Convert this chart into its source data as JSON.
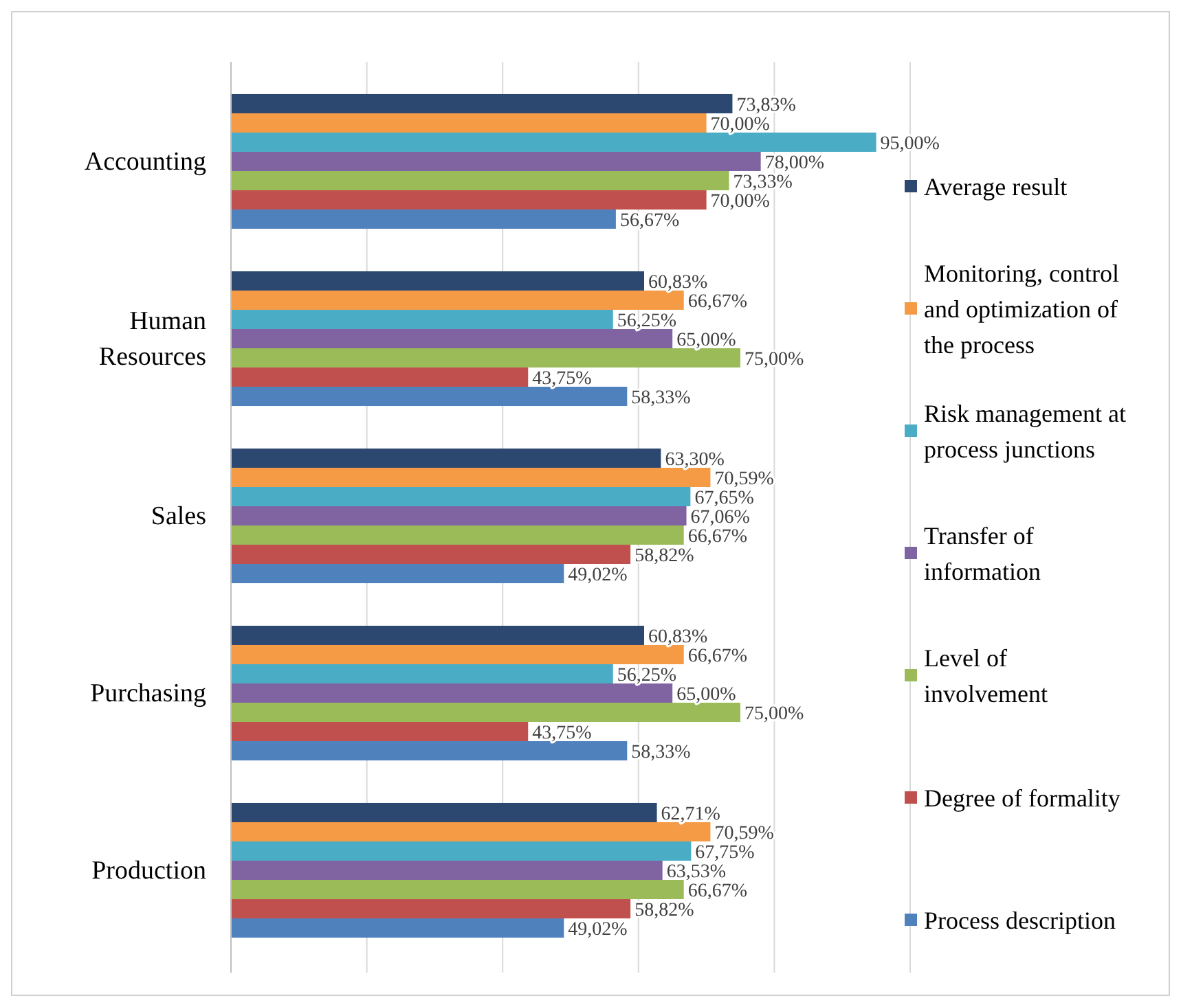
{
  "chart_data": {
    "type": "bar",
    "orientation": "horizontal",
    "categories": [
      "Accounting",
      "Human Resources",
      "Sales",
      "Purchasing",
      "Production"
    ],
    "series": [
      {
        "name": "Average result",
        "color": "#2c4770",
        "values": [
          73.83,
          60.83,
          63.3,
          60.83,
          62.71
        ],
        "value_labels": [
          "73,83%",
          "60,83%",
          "63,30%",
          "60,83%",
          "62,71%"
        ]
      },
      {
        "name": "Monitoring, control and optimization of the process",
        "color": "#f59a45",
        "values": [
          70.0,
          66.67,
          70.59,
          66.67,
          70.59
        ],
        "value_labels": [
          "70,00%",
          "66,67%",
          "70,59%",
          "66,67%",
          "70,59%"
        ]
      },
      {
        "name": "Risk management at process junctions",
        "color": "#4bacc6",
        "values": [
          95.0,
          56.25,
          67.65,
          56.25,
          67.75
        ],
        "value_labels": [
          "95,00%",
          "56,25%",
          "67,65%",
          "56,25%",
          "67,75%"
        ]
      },
      {
        "name": "Transfer of information",
        "color": "#8064a2",
        "values": [
          78.0,
          65.0,
          67.06,
          65.0,
          63.53
        ],
        "value_labels": [
          "78,00%",
          "65,00%",
          "67,06%",
          "65,00%",
          "63,53%"
        ]
      },
      {
        "name": "Level of involvement",
        "color": "#9bbb59",
        "values": [
          73.33,
          75.0,
          66.67,
          75.0,
          66.67
        ],
        "value_labels": [
          "73,33%",
          "75,00%",
          "66,67%",
          "75,00%",
          "66,67%"
        ]
      },
      {
        "name": "Degree of formality",
        "color": "#c0504d",
        "values": [
          70.0,
          43.75,
          58.82,
          43.75,
          58.82
        ],
        "value_labels": [
          "70,00%",
          "43,75%",
          "58,82%",
          "43,75%",
          "58,82%"
        ]
      },
      {
        "name": "Process description",
        "color": "#4f81bd",
        "values": [
          56.67,
          58.33,
          49.02,
          58.33,
          49.02
        ],
        "value_labels": [
          "56,67%",
          "58,33%",
          "49,02%",
          "58,33%",
          "49,02%"
        ]
      }
    ],
    "xlim": [
      0,
      100
    ],
    "xticks": [
      {
        "value": 0,
        "label": null
      },
      {
        "value": 20,
        "label": null
      },
      {
        "value": 40,
        "label": null
      },
      {
        "value": 60,
        "label": null
      },
      {
        "value": 80,
        "label": null
      },
      {
        "value": 100,
        "label": null
      }
    ],
    "tick_labels": "y",
    "grid": "x",
    "legend": "right"
  }
}
